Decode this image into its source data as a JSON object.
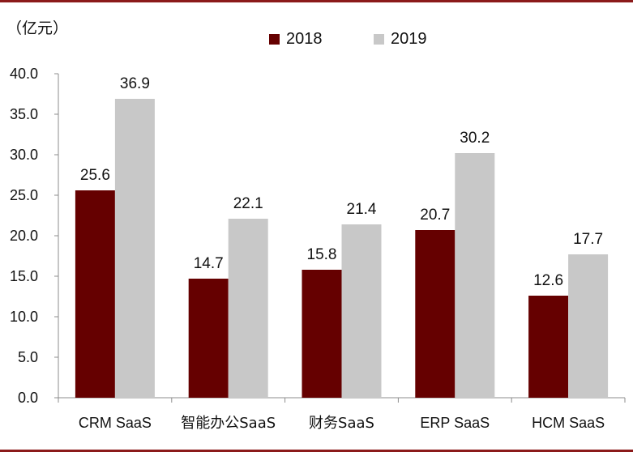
{
  "chart_data": {
    "type": "bar",
    "unit_label": "（亿元）",
    "categories": [
      "CRM SaaS",
      "智能办公SaaS",
      "财务SaaS",
      "ERP SaaS",
      "HCM SaaS"
    ],
    "series": [
      {
        "name": "2018",
        "color": "#650000",
        "values": [
          25.6,
          14.7,
          15.8,
          20.7,
          12.6
        ]
      },
      {
        "name": "2019",
        "color": "#c8c8c8",
        "values": [
          36.9,
          22.1,
          21.4,
          30.2,
          17.7
        ]
      }
    ],
    "y_ticks": [
      "0.0",
      "5.0",
      "10.0",
      "15.0",
      "20.0",
      "25.0",
      "30.0",
      "35.0",
      "40.0"
    ],
    "ylim": [
      0,
      40
    ],
    "legend_position": "top-center",
    "grid": false
  }
}
